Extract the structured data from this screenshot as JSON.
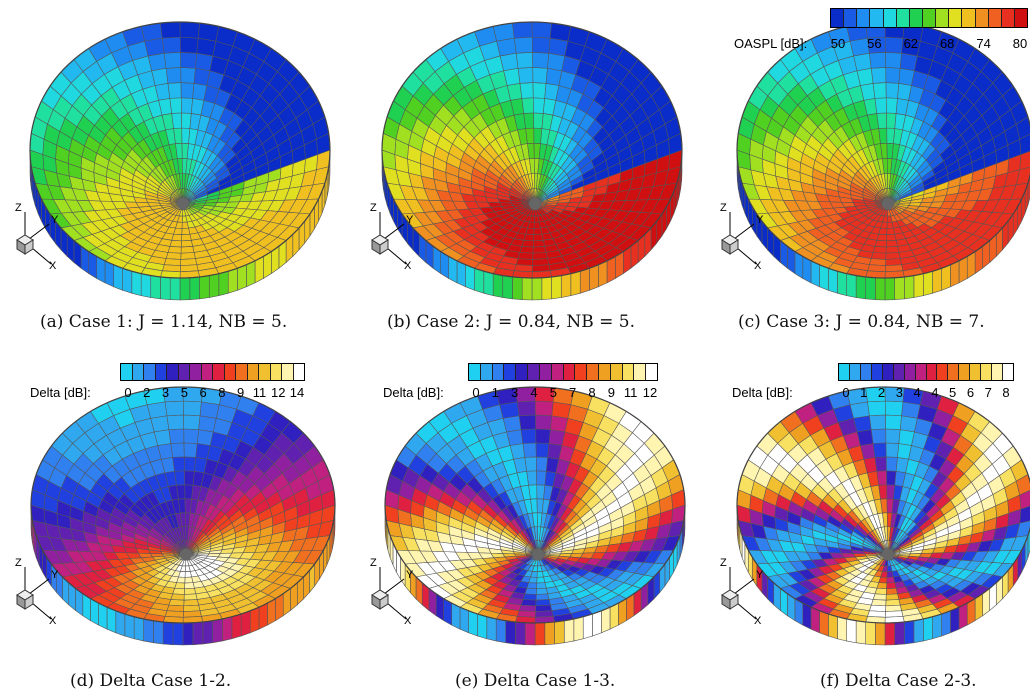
{
  "panels": [
    {
      "id": "a",
      "caption": "(a) Case 1: J = 1.14, NB = 5.",
      "kind": "oaspl",
      "variant": 1
    },
    {
      "id": "b",
      "caption": "(b) Case 2: J = 0.84, NB = 5.",
      "kind": "oaspl",
      "variant": 2
    },
    {
      "id": "c",
      "caption": "(c) Case 3: J = 0.84, NB = 7.",
      "kind": "oaspl",
      "variant": 3
    },
    {
      "id": "d",
      "caption": "(d) Delta Case 1-2.",
      "kind": "delta",
      "variant": 1
    },
    {
      "id": "e",
      "caption": "(e) Delta Case 1-3.",
      "kind": "delta",
      "variant": 2
    },
    {
      "id": "f",
      "caption": "(f) Delta Case 2-3.",
      "kind": "delta",
      "variant": 3
    }
  ],
  "oaspl_legend": {
    "label": "OASPL [dB]:",
    "ticks": [
      "50",
      "56",
      "62",
      "68",
      "74",
      "80"
    ],
    "colors": [
      "#0a2cc8",
      "#1a5be6",
      "#1e8cf0",
      "#22b8f0",
      "#20d8e0",
      "#20e0a0",
      "#20d050",
      "#50d020",
      "#a0e020",
      "#e0e020",
      "#f0c020",
      "#f09020",
      "#f06020",
      "#e83020",
      "#d01010"
    ]
  },
  "delta_legends": [
    {
      "label": "Delta [dB]:",
      "ticks": [
        "0",
        "2",
        "3",
        "5",
        "6",
        "8",
        "9",
        "11",
        "12",
        "14"
      ]
    },
    {
      "label": "Delta [dB]:",
      "ticks": [
        "0",
        "1",
        "3",
        "4",
        "5",
        "7",
        "8",
        "9",
        "11",
        "12"
      ]
    },
    {
      "label": "Delta [dB]:",
      "ticks": [
        "0",
        "1",
        "2",
        "3",
        "4",
        "4",
        "5",
        "6",
        "7",
        "8"
      ]
    }
  ],
  "delta_colors": [
    "#20d0f0",
    "#30a8f0",
    "#3080f0",
    "#2040e0",
    "#3020c0",
    "#6020b0",
    "#9020a0",
    "#c02080",
    "#e02040",
    "#f04020",
    "#f07020",
    "#f0a020",
    "#f0c030",
    "#f8e060",
    "#fff4b0",
    "#ffffff"
  ],
  "axes_labels": {
    "z": "Z",
    "y": "Y",
    "x": "X"
  }
}
